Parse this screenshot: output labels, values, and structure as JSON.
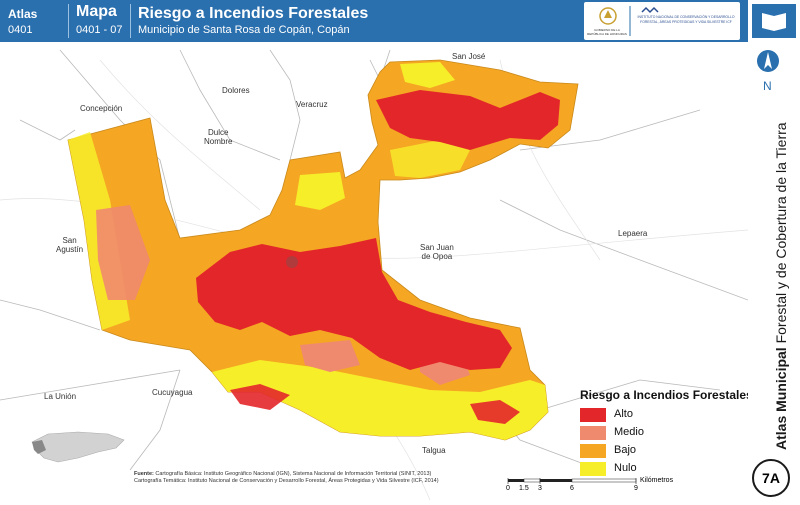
{
  "header": {
    "atlas_label": "Atlas",
    "atlas_code": "0401",
    "mapa_label": "Mapa",
    "mapa_code": "0401 - 07",
    "title": "Riesgo a Incendios Forestales",
    "subtitle": "Municipio de Santa Rosa de Copán, Copán"
  },
  "logos": {
    "left_caption": "GOBIERNO DE LA REPÚBLICA DE HONDURAS",
    "right_caption": "INSTITUTO NACIONAL DE CONSERVACIÓN Y DESARROLLO FORESTAL, ÁREAS PROTEGIDAS Y VIDA SILVESTRE ICF"
  },
  "sidebar": {
    "north_label": "N",
    "vertical_bold": "Atlas Municipal",
    "vertical_rest": " Forestal y de Cobertura de la Tierra",
    "badge": "7A"
  },
  "places": {
    "san_jose": "San José",
    "dolores": "Dolores",
    "concepcion": "Concepción",
    "veracruz": "Veracruz",
    "dulce_nombre_1": "Dulce",
    "dulce_nombre_2": "Nombre",
    "san_agustin_1": "San",
    "san_agustin_2": "Agustín",
    "san_juan_1": "San Juan",
    "san_juan_2": "de Opoa",
    "lepaera": "Lepaera",
    "la_union": "La Unión",
    "cucuyagua": "Cucuyagua",
    "talgua": "Talgua"
  },
  "legend": {
    "title": "Riesgo a Incendios Forestales",
    "items": [
      {
        "label": "Alto",
        "color": "#e3262a"
      },
      {
        "label": "Medio",
        "color": "#f08a6e"
      },
      {
        "label": "Bajo",
        "color": "#f5a623"
      },
      {
        "label": "Nulo",
        "color": "#f7ee2a"
      }
    ]
  },
  "fuente": {
    "label": "Fuente:",
    "line1": "Cartografía Básica: Instituto Geográfico Nacional (IGN), Sistema Nacional de Información Territorial (SINIT, 2013)",
    "line2": "Cartografía Temática: Instituto Nacional de Conservación y Desarrollo Forestal, Áreas Protegidas y Vida Silvestre (ICF, 2014)"
  },
  "scale": {
    "ticks": [
      "0",
      "1.5",
      "3",
      "6",
      "9"
    ],
    "unit": "Kilómetros"
  }
}
